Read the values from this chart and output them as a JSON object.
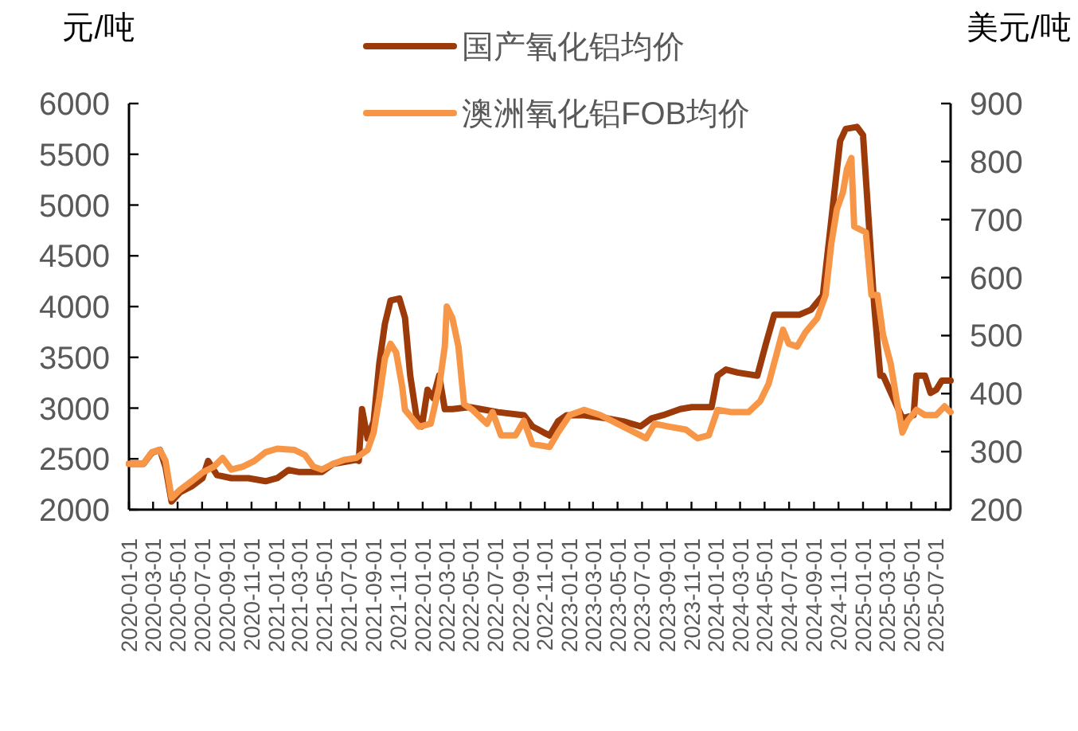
{
  "chart_data": {
    "type": "line",
    "ylabel": "元/吨",
    "y2label": "美元/吨",
    "legend": "top",
    "xlim": [
      "2020-01-01",
      "2025-08-07"
    ],
    "xticks": [
      "2020-01-01",
      "2020-03-01",
      "2020-05-01",
      "2020-07-01",
      "2020-09-01",
      "2020-11-01",
      "2021-01-01",
      "2021-03-01",
      "2021-05-01",
      "2021-07-01",
      "2021-09-01",
      "2021-11-01",
      "2022-01-01",
      "2022-03-01",
      "2022-05-01",
      "2022-07-01",
      "2022-09-01",
      "2022-11-01",
      "2023-01-01",
      "2023-03-01",
      "2023-05-01",
      "2023-07-01",
      "2023-09-01",
      "2023-11-01",
      "2024-01-01",
      "2024-03-01",
      "2024-05-01",
      "2024-07-01",
      "2024-09-01",
      "2024-11-01",
      "2025-01-01",
      "2025-03-01",
      "2025-05-01",
      "2025-07-01"
    ],
    "ylim": [
      2000,
      6000
    ],
    "yticks": [
      2000,
      2500,
      3000,
      3500,
      4000,
      4500,
      5000,
      5500,
      6000
    ],
    "y2lim": [
      200,
      900
    ],
    "y2ticks": [
      200,
      300,
      400,
      500,
      600,
      700,
      800,
      900
    ],
    "series": [
      {
        "name": "国产氧化铝均价",
        "color": "#9c3a0a",
        "x": [
          "2020-01-01",
          "2020-02-06",
          "2020-02-27",
          "2020-03-18",
          "2020-04-01",
          "2020-04-16",
          "2020-05-07",
          "2020-06-05",
          "2020-07-02",
          "2020-07-16",
          "2020-08-07",
          "2020-09-12",
          "2020-10-24",
          "2020-12-06",
          "2021-01-04",
          "2021-02-01",
          "2021-02-28",
          "2021-04-25",
          "2021-05-23",
          "2021-07-19",
          "2021-07-26",
          "2021-08-03",
          "2021-08-17",
          "2021-09-01",
          "2021-09-15",
          "2021-09-29",
          "2021-10-13",
          "2021-11-04",
          "2021-11-18",
          "2021-12-01",
          "2021-12-16",
          "2021-12-30",
          "2022-01-13",
          "2022-01-27",
          "2022-02-11",
          "2022-02-25",
          "2022-03-16",
          "2022-04-28",
          "2022-05-26",
          "2022-07-08",
          "2022-09-10",
          "2022-10-01",
          "2022-10-29",
          "2022-11-13",
          "2022-12-04",
          "2022-12-25",
          "2023-02-07",
          "2023-04-03",
          "2023-05-15",
          "2023-06-27",
          "2023-07-25",
          "2023-08-22",
          "2023-10-04",
          "2023-11-02",
          "2023-12-21",
          "2024-01-05",
          "2024-01-26",
          "2024-02-24",
          "2024-04-13",
          "2024-05-04",
          "2024-05-25",
          "2024-07-27",
          "2024-08-25",
          "2024-09-23",
          "2024-10-14",
          "2024-11-05",
          "2024-11-19",
          "2024-12-17",
          "2025-01-01",
          "2025-01-15",
          "2025-01-29",
          "2025-02-13",
          "2025-02-20",
          "2025-04-09",
          "2025-05-07",
          "2025-05-14",
          "2025-06-04",
          "2025-06-18",
          "2025-07-02",
          "2025-07-16",
          "2025-08-07"
        ],
        "values": [
          2450,
          2450,
          2560,
          2590,
          2420,
          2080,
          2170,
          2230,
          2310,
          2480,
          2340,
          2310,
          2310,
          2280,
          2310,
          2390,
          2370,
          2370,
          2450,
          2490,
          2480,
          2990,
          2700,
          2870,
          3440,
          3830,
          4060,
          4080,
          3890,
          3320,
          2930,
          2820,
          3180,
          3100,
          3320,
          2990,
          2990,
          3010,
          2990,
          2960,
          2930,
          2820,
          2760,
          2730,
          2870,
          2930,
          2930,
          2900,
          2870,
          2820,
          2900,
          2930,
          2990,
          3010,
          3010,
          3320,
          3380,
          3350,
          3320,
          3630,
          3920,
          3920,
          3970,
          4110,
          4850,
          5630,
          5750,
          5770,
          5690,
          4850,
          4000,
          3320,
          3320,
          2900,
          2930,
          3320,
          3320,
          3150,
          3180,
          3270,
          3270
        ]
      },
      {
        "name": "澳洲氧化铝FOB均价",
        "color": "#f79646",
        "axis": "y2",
        "x": [
          "2020-01-01",
          "2020-02-06",
          "2020-02-27",
          "2020-03-18",
          "2020-04-01",
          "2020-04-16",
          "2020-05-07",
          "2020-06-05",
          "2020-07-02",
          "2020-07-30",
          "2020-08-21",
          "2020-09-12",
          "2020-10-10",
          "2020-11-08",
          "2020-12-06",
          "2021-01-04",
          "2021-02-16",
          "2021-03-14",
          "2021-04-04",
          "2021-04-25",
          "2021-05-23",
          "2021-06-21",
          "2021-07-19",
          "2021-08-17",
          "2021-09-01",
          "2021-09-15",
          "2021-09-29",
          "2021-10-13",
          "2021-10-27",
          "2021-11-11",
          "2021-11-18",
          "2021-12-23",
          "2022-01-21",
          "2022-02-11",
          "2022-02-25",
          "2022-03-02",
          "2022-03-16",
          "2022-03-31",
          "2022-04-14",
          "2022-05-05",
          "2022-05-26",
          "2022-06-10",
          "2022-06-24",
          "2022-07-15",
          "2022-08-20",
          "2022-09-10",
          "2022-10-01",
          "2022-11-13",
          "2022-12-04",
          "2023-01-02",
          "2023-02-07",
          "2023-03-19",
          "2023-05-01",
          "2023-06-13",
          "2023-07-11",
          "2023-08-01",
          "2023-09-07",
          "2023-10-18",
          "2023-11-16",
          "2023-12-14",
          "2024-01-05",
          "2024-02-10",
          "2024-03-22",
          "2024-04-20",
          "2024-05-11",
          "2024-06-01",
          "2024-06-16",
          "2024-06-30",
          "2024-07-21",
          "2024-08-11",
          "2024-09-09",
          "2024-09-30",
          "2024-10-14",
          "2024-10-28",
          "2024-11-12",
          "2024-11-22",
          "2024-12-03",
          "2024-12-10",
          "2025-01-08",
          "2025-01-22",
          "2025-02-06",
          "2025-02-20",
          "2025-03-11",
          "2025-03-25",
          "2025-04-09",
          "2025-04-22",
          "2025-05-14",
          "2025-06-04",
          "2025-07-02",
          "2025-07-23",
          "2025-08-07"
        ],
        "values": [
          279,
          279,
          299,
          303,
          284,
          220,
          234,
          249,
          264,
          274,
          289,
          269,
          274,
          284,
          299,
          305,
          303,
          294,
          274,
          269,
          279,
          286,
          289,
          303,
          333,
          392,
          461,
          486,
          471,
          412,
          372,
          343,
          348,
          412,
          481,
          550,
          530,
          481,
          382,
          372,
          358,
          348,
          368,
          328,
          328,
          353,
          313,
          308,
          333,
          363,
          372,
          363,
          348,
          333,
          323,
          348,
          343,
          338,
          323,
          328,
          372,
          368,
          368,
          387,
          417,
          471,
          510,
          486,
          481,
          506,
          530,
          570,
          658,
          718,
          747,
          787,
          806,
          688,
          678,
          570,
          570,
          501,
          451,
          392,
          333,
          353,
          372,
          363,
          363,
          378,
          368
        ]
      }
    ]
  }
}
